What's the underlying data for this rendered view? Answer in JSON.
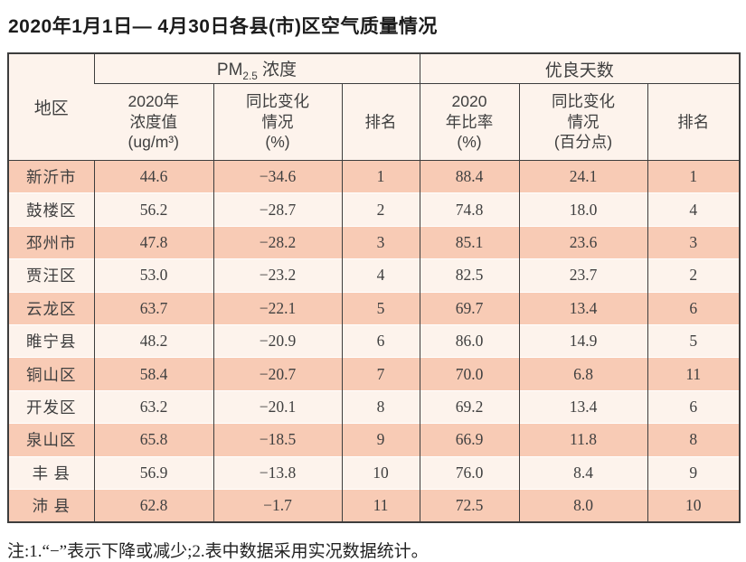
{
  "page": {
    "title": "2020年1月1日— 4月30日各县(市)区空气质量情况",
    "note": "注:1.“−”表示下降或减少;2.表中数据采用实况数据统计。"
  },
  "colors": {
    "row_salmon": "#f8cbb5",
    "row_cream": "#fdf3ec",
    "grid_border": "#3d3d3d",
    "text": "#3f3f3f"
  },
  "table": {
    "head": {
      "region": "地区",
      "pm25_prefix": "PM",
      "pm25_sub": "2.5",
      "pm25_suffix": " 浓度",
      "good_days": "优良天数",
      "sub": [
        "2020年\n浓度值\n(ug/m³)",
        "同比变化\n情况\n(%)",
        "排名",
        "2020\n年比率\n(%)",
        "同比变化\n情况\n(百分点)",
        "排名"
      ]
    },
    "rows": [
      [
        "新沂市",
        "44.6",
        "−34.6",
        "1",
        "88.4",
        "24.1",
        "1"
      ],
      [
        "鼓楼区",
        "56.2",
        "−28.7",
        "2",
        "74.8",
        "18.0",
        "4"
      ],
      [
        "邳州市",
        "47.8",
        "−28.2",
        "3",
        "85.1",
        "23.6",
        "3"
      ],
      [
        "贾汪区",
        "53.0",
        "−23.2",
        "4",
        "82.5",
        "23.7",
        "2"
      ],
      [
        "云龙区",
        "63.7",
        "−22.1",
        "5",
        "69.7",
        "13.4",
        "6"
      ],
      [
        "睢宁县",
        "48.2",
        "−20.9",
        "6",
        "86.0",
        "14.9",
        "5"
      ],
      [
        "铜山区",
        "58.4",
        "−20.7",
        "7",
        "70.0",
        "6.8",
        "11"
      ],
      [
        "开发区",
        "63.2",
        "−20.1",
        "8",
        "69.2",
        "13.4",
        "6"
      ],
      [
        "泉山区",
        "65.8",
        "−18.5",
        "9",
        "66.9",
        "11.8",
        "8"
      ],
      [
        "丰 县",
        "56.9",
        "−13.8",
        "10",
        "76.0",
        "8.4",
        "9"
      ],
      [
        "沛 县",
        "62.8",
        "−1.7",
        "11",
        "72.5",
        "8.0",
        "10"
      ]
    ]
  }
}
